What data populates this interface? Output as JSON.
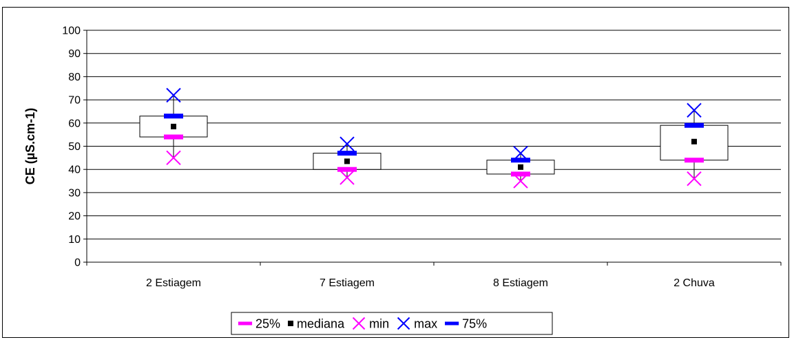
{
  "chart_data": {
    "type": "box",
    "title": "",
    "xlabel": "",
    "ylabel": "CE (µS.cm-1)",
    "ylim": [
      0,
      100
    ],
    "yticks": [
      0,
      10,
      20,
      30,
      40,
      50,
      60,
      70,
      80,
      90,
      100
    ],
    "ytick_labels": [
      "0",
      "10",
      "20",
      "30",
      "40",
      "50",
      "60",
      "70",
      "80",
      "90",
      "100"
    ],
    "grid": true,
    "legend_position": "bottom",
    "categories": [
      "2 Estiagem",
      "7 Estiagem",
      "8 Estiagem",
      "2 Chuva"
    ],
    "series": [
      {
        "name": "25%",
        "values": [
          54,
          40,
          38,
          44
        ],
        "color": "#ff00ff",
        "marker": "dash"
      },
      {
        "name": "mediana",
        "values": [
          58.5,
          43.5,
          41,
          52
        ],
        "color": "#000000",
        "marker": "square"
      },
      {
        "name": "min",
        "values": [
          45,
          36.5,
          35,
          36
        ],
        "color": "#ff00ff",
        "marker": "x"
      },
      {
        "name": "max",
        "values": [
          72,
          51,
          47,
          65.5
        ],
        "color": "#0000ff",
        "marker": "x"
      },
      {
        "name": "75%",
        "values": [
          63,
          47,
          44,
          59
        ],
        "color": "#0000ff",
        "marker": "dash"
      }
    ],
    "box_color": "#000000",
    "grid_color": "#000000"
  }
}
